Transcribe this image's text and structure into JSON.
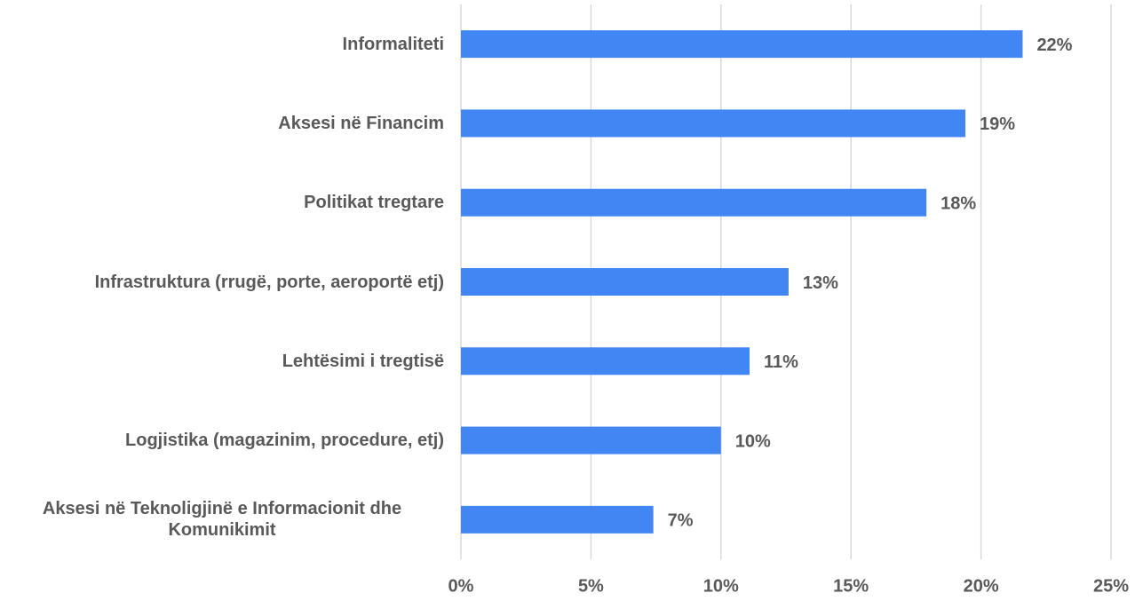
{
  "chart_data": {
    "type": "bar",
    "orientation": "horizontal",
    "categories": [
      "Informaliteti",
      "Aksesi në Financim",
      "Politikat tregtare",
      "Infrastruktura (rrugë, porte, aeroportë etj)",
      "Lehtësimi i tregtisë",
      "Logjistika (magazinim, procedure, etj)",
      "Aksesi në Teknoligjinë e Informacionit dhe Komunikimit"
    ],
    "values": [
      21.6,
      19.4,
      17.9,
      12.6,
      11.1,
      10.0,
      7.4
    ],
    "value_labels": [
      "22%",
      "19%",
      "18%",
      "13%",
      "11%",
      "10%",
      "7%"
    ],
    "color": "#4286f4",
    "xlim": [
      0,
      25
    ],
    "xticks": [
      {
        "value": 0,
        "label": "0%"
      },
      {
        "value": 5,
        "label": "5%"
      },
      {
        "value": 10,
        "label": "10%"
      },
      {
        "value": 15,
        "label": "15%"
      },
      {
        "value": 20,
        "label": "20%"
      },
      {
        "value": 25,
        "label": "25%"
      }
    ],
    "grid": true
  }
}
